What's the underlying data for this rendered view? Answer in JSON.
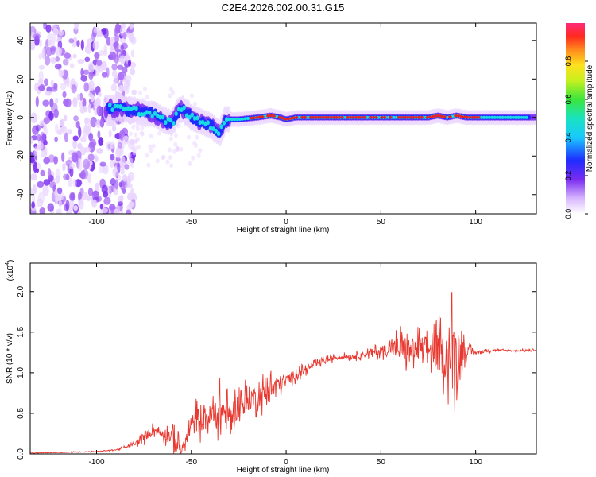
{
  "title": "C2E4.2026.002.00.31.G15",
  "colors": {
    "snr_line": "#e8382f",
    "spec_low": "#e9d4ff",
    "spec_mid_purple": "#7a2cf0",
    "spec_blue": "#1f2cff",
    "spec_cyan": "#19e3e0",
    "spec_red": "#e3242b"
  },
  "chart_data": [
    {
      "type": "heatmap",
      "xlabel": "Height of straight line (km)",
      "ylabel": "Frequency (Hz)",
      "xlim": [
        -135,
        132
      ],
      "ylim": [
        -50,
        49
      ],
      "x_ticks": [
        -100,
        -50,
        0,
        50,
        100
      ],
      "y_ticks": [
        -40,
        -20,
        0,
        20,
        40
      ],
      "colorbar": {
        "label": "Normalized spectral amplitude",
        "range": [
          0,
          1
        ],
        "ticks": [
          "0.0",
          "0.2",
          "0.4",
          "0.6",
          "0.8"
        ],
        "tick_values": [
          0.0,
          0.2,
          0.4,
          0.6,
          0.8
        ]
      },
      "ridge": {
        "x": [
          -95,
          -90,
          -85,
          -80,
          -75,
          -70,
          -65,
          -60,
          -57,
          -55,
          -50,
          -45,
          -40,
          -35,
          -32,
          -25,
          -15,
          -8,
          -3,
          0,
          5,
          20,
          40,
          55,
          60,
          65,
          70,
          75,
          80,
          85,
          90,
          95,
          100
        ],
        "y": [
          5,
          5,
          4,
          4,
          2,
          2,
          -1,
          -3,
          3,
          5,
          0,
          -2,
          -4,
          -8,
          -1,
          -1,
          0,
          1,
          0,
          -1,
          0,
          0,
          0,
          0,
          0,
          0,
          0,
          0,
          1,
          0,
          1,
          0,
          0
        ]
      },
      "grid": false
    },
    {
      "type": "line",
      "xlabel": "Height of straight line (km)",
      "ylabel": "SNR (10 * v/v)",
      "y_multiplier": "(x10",
      "y_multiplier_exp": "4",
      "xlim": [
        -135,
        132
      ],
      "ylim": [
        0,
        2.35
      ],
      "x_ticks": [
        -100,
        -50,
        0,
        50,
        100
      ],
      "y_ticks": [
        "0.0",
        "0.5",
        "1.0",
        "1.5",
        "2.0"
      ],
      "y_tick_values": [
        0.0,
        0.5,
        1.0,
        1.5,
        2.0
      ],
      "envelope": {
        "x": [
          -135,
          -100,
          -90,
          -85,
          -80,
          -75,
          -70,
          -65,
          -60,
          -55,
          -50,
          -45,
          -40,
          -35,
          -30,
          -25,
          -20,
          -15,
          -10,
          -5,
          0,
          5,
          10,
          15,
          20,
          25,
          30,
          35,
          40,
          45,
          50,
          55,
          60,
          65,
          70,
          75,
          80,
          85,
          88,
          90,
          95,
          100,
          110,
          120,
          132
        ],
        "y": [
          0.01,
          0.03,
          0.05,
          0.08,
          0.12,
          0.2,
          0.3,
          0.25,
          0.22,
          0.05,
          0.35,
          0.45,
          0.45,
          0.55,
          0.45,
          0.6,
          0.68,
          0.7,
          0.78,
          0.85,
          0.9,
          0.98,
          1.03,
          1.1,
          1.15,
          1.18,
          1.2,
          1.2,
          1.22,
          1.25,
          1.27,
          1.3,
          1.3,
          1.28,
          1.3,
          1.3,
          1.25,
          1.2,
          1.2,
          1.25,
          1.27,
          1.25,
          1.28,
          1.27,
          1.28
        ]
      },
      "noise": {
        "x": [
          -135,
          -90,
          -80,
          -75,
          -70,
          -65,
          -60,
          -57,
          -55,
          -50,
          -45,
          -40,
          -35,
          -30,
          -25,
          -20,
          -15,
          -10,
          -5,
          0,
          10,
          20,
          30,
          45,
          55,
          60,
          65,
          75,
          80,
          85,
          88,
          90,
          95,
          100,
          110,
          132
        ],
        "amp": [
          0.005,
          0.01,
          0.04,
          0.1,
          0.1,
          0.12,
          0.2,
          0.35,
          0.05,
          0.25,
          0.35,
          0.3,
          0.4,
          0.35,
          0.3,
          0.3,
          0.25,
          0.3,
          0.22,
          0.15,
          0.08,
          0.06,
          0.05,
          0.08,
          0.15,
          0.35,
          0.3,
          0.3,
          0.45,
          0.55,
          1.0,
          0.6,
          0.15,
          0.04,
          0.02,
          0.02
        ]
      },
      "grid": false
    }
  ]
}
